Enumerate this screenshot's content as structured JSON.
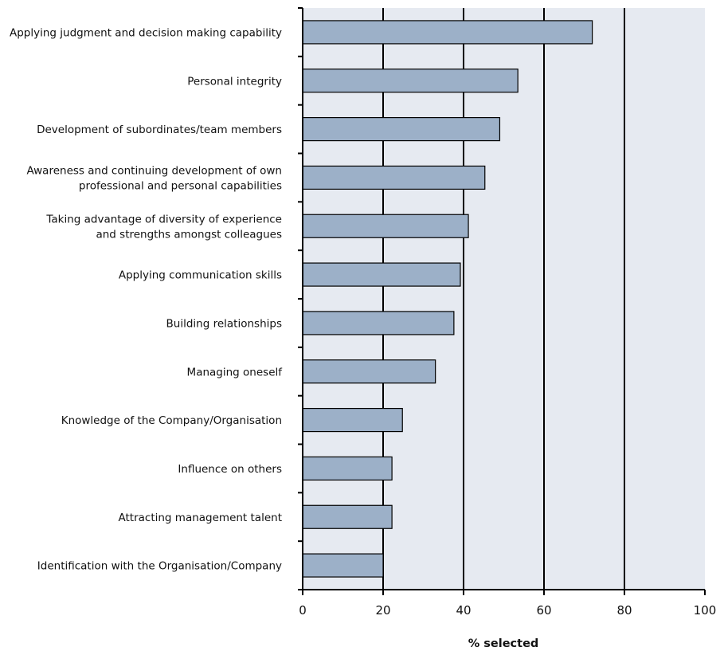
{
  "chart_data": {
    "type": "bar",
    "orientation": "horizontal",
    "title": "",
    "xlabel": "% selected",
    "ylabel": "",
    "xlim": [
      0,
      100
    ],
    "x_ticks": [
      0,
      20,
      40,
      60,
      80,
      100
    ],
    "grid": "vertical major lines",
    "categories": [
      [
        "Applying judgment and decision making capability"
      ],
      [
        "Personal integrity"
      ],
      [
        "Development of subordinates/team members"
      ],
      [
        "Awareness and continuing development of own",
        "professional and personal capabilities"
      ],
      [
        "Taking advantage of diversity of experience",
        "and strengths amongst colleagues"
      ],
      [
        "Applying communication skills"
      ],
      [
        "Building relationships"
      ],
      [
        "Managing oneself"
      ],
      [
        "Knowledge of the Company/Organisation"
      ],
      [
        "Influence on others"
      ],
      [
        "Attracting management talent"
      ],
      [
        "Identification with the Organisation/Company"
      ]
    ],
    "values": [
      72,
      53.5,
      49,
      45.3,
      41.2,
      39.2,
      37.6,
      33,
      24.8,
      22.2,
      22.2,
      20
    ],
    "colors": {
      "bar_fill": "#9cb0c8",
      "plot_background": "#e6eaf1",
      "gridline": "#000000"
    }
  }
}
